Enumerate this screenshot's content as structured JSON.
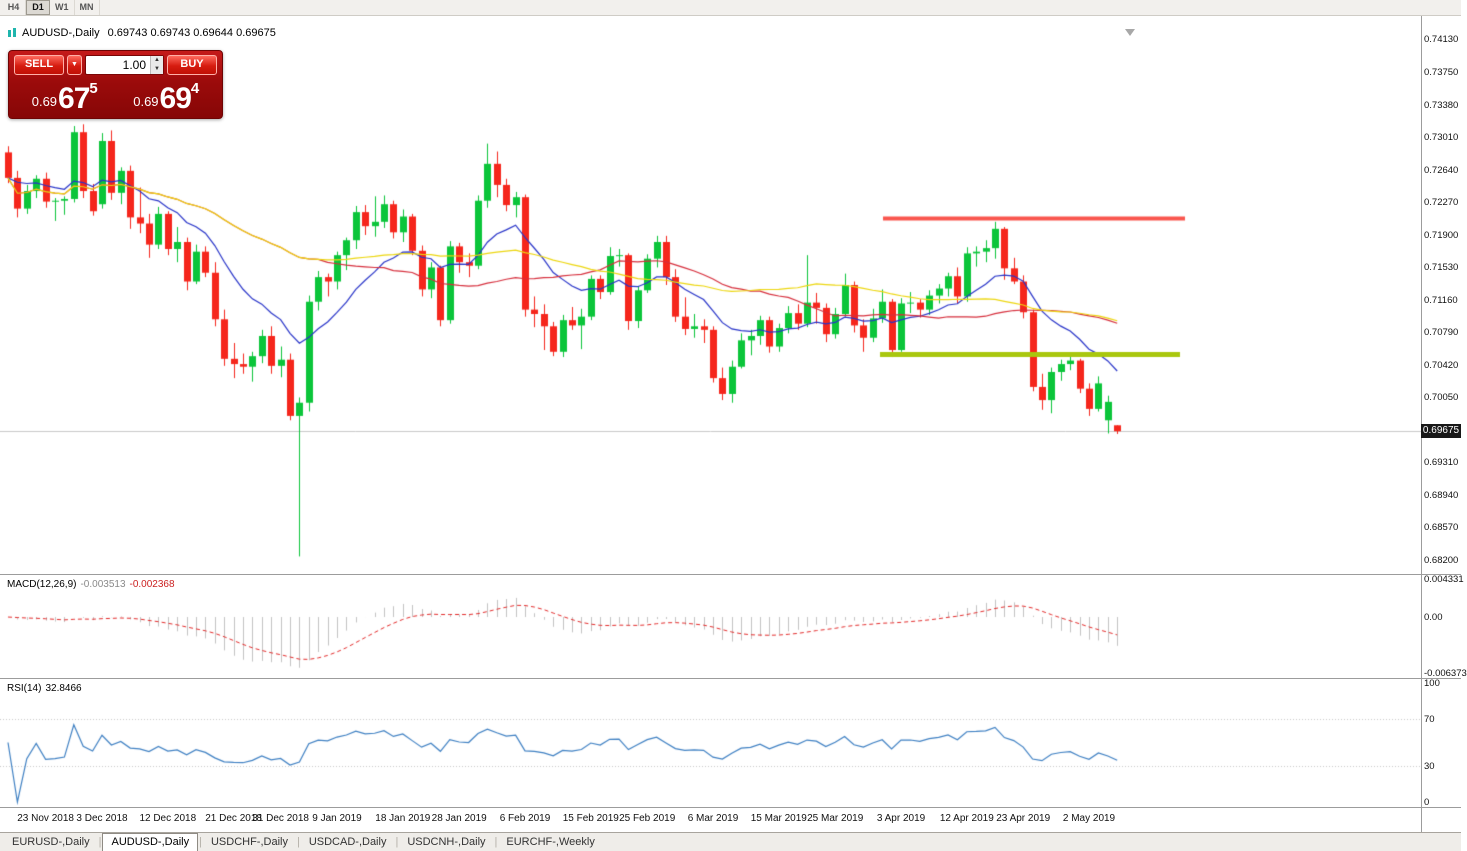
{
  "toolbar": {
    "timeframes": [
      "H4",
      "D1",
      "W1",
      "MN"
    ],
    "active_timeframe": "D1"
  },
  "chart_header": {
    "symbol": "AUDUSD-,Daily",
    "ohlc": "0.69743 0.69743 0.69644 0.69675",
    "current_price_badge": "0.69675"
  },
  "trade_panel": {
    "sell_label": "SELL",
    "buy_label": "BUY",
    "volume": "1.00",
    "icons": {
      "dropdown": "▼",
      "spin_up": "▲",
      "spin_down": "▼"
    },
    "sell_price": {
      "base": "0.69",
      "pips": "67",
      "point": "5"
    },
    "buy_price": {
      "base": "0.69",
      "pips": "69",
      "point": "4"
    }
  },
  "macd_panel": {
    "name": "MACD(12,26,9)",
    "value_main": "-0.003513",
    "value_signal": "-0.002368",
    "axis_labels": [
      "0.004331",
      "0.00",
      "-0.006373"
    ]
  },
  "rsi_panel": {
    "name": "RSI(14)",
    "value": "32.8466",
    "axis_labels": [
      "100",
      "70",
      "30",
      "0"
    ]
  },
  "tab_bar": {
    "separator": "|",
    "tabs": [
      {
        "label": "EURUSD-,Daily",
        "active": false
      },
      {
        "label": "AUDUSD-,Daily",
        "active": true
      },
      {
        "label": "USDCHF-,Daily",
        "active": false
      },
      {
        "label": "USDCAD-,Daily",
        "active": false
      },
      {
        "label": "USDCNH-,Daily",
        "active": false
      },
      {
        "label": "EURCHF-,Weekly",
        "active": false
      }
    ]
  },
  "colors": {
    "bull": "#0bc53a",
    "bear": "#f5261c",
    "price_line": "#c9c9c9",
    "badge_bg": "#181818",
    "macd_hist": "#c2c2c2",
    "macd_signal": "#e22929",
    "rsi_line": "#3d7fc2",
    "rsi_levels": "#c6c6c6"
  },
  "chart_data": {
    "type": "candlestick",
    "symbol": "AUDUSD",
    "timeframe": "Daily",
    "ylim": [
      0.6805,
      0.74403
    ],
    "current_price": 0.69675,
    "price_axis_labels": [
      "0.74130",
      "0.73750",
      "0.73380",
      "0.73010",
      "0.72640",
      "0.72270",
      "0.71900",
      "0.71530",
      "0.71160",
      "0.70790",
      "0.70420",
      "0.70050",
      "0.69310",
      "0.68940",
      "0.68570",
      "0.68200"
    ],
    "date_labels": [
      {
        "label": "23 Nov 2018",
        "index": 4
      },
      {
        "label": "3 Dec 2018",
        "index": 10
      },
      {
        "label": "12 Dec 2018",
        "index": 17
      },
      {
        "label": "21 Dec 2018",
        "index": 24
      },
      {
        "label": "31 Dec 2018",
        "index": 29
      },
      {
        "label": "9 Jan 2019",
        "index": 35
      },
      {
        "label": "18 Jan 2019",
        "index": 42
      },
      {
        "label": "28 Jan 2019",
        "index": 48
      },
      {
        "label": "6 Feb 2019",
        "index": 55
      },
      {
        "label": "15 Feb 2019",
        "index": 62
      },
      {
        "label": "25 Feb 2019",
        "index": 68
      },
      {
        "label": "6 Mar 2019",
        "index": 75
      },
      {
        "label": "15 Mar 2019",
        "index": 82
      },
      {
        "label": "25 Mar 2019",
        "index": 88
      },
      {
        "label": "3 Apr 2019",
        "index": 95
      },
      {
        "label": "12 Apr 2019",
        "index": 102
      },
      {
        "label": "23 Apr 2019",
        "index": 108
      },
      {
        "label": "2 May 2019",
        "index": 115
      }
    ],
    "overlays": {
      "moving_averages": [
        {
          "name": "fast",
          "type": "ema",
          "period": 13,
          "color": "#2733c8"
        },
        {
          "name": "mid",
          "type": "sma",
          "period": 34,
          "color": "#d62e3c"
        },
        {
          "name": "slow",
          "type": "sma",
          "period": 55,
          "color": "#ecd60e"
        }
      ],
      "resistance_line": {
        "price": 0.721,
        "x1": 883,
        "x2": 1185,
        "color": "#f9564e",
        "width": 4
      },
      "support_line": {
        "price": 0.70555,
        "x1": 880,
        "x2": 1180,
        "color": "#a9c70e",
        "width": 5
      }
    },
    "macd": {
      "fast": 12,
      "slow": 26,
      "signal_period": 9,
      "ylim": [
        -0.006373,
        0.004331
      ]
    },
    "rsi": {
      "period": 14,
      "levels": [
        70,
        30
      ]
    },
    "candles": [
      [
        0.7285,
        0.7292,
        0.725,
        0.7256
      ],
      [
        0.7256,
        0.7264,
        0.7211,
        0.7221
      ],
      [
        0.7221,
        0.7248,
        0.7215,
        0.7241
      ],
      [
        0.7241,
        0.7259,
        0.7233,
        0.7255
      ],
      [
        0.7255,
        0.7262,
        0.7222,
        0.7229
      ],
      [
        0.7229,
        0.7233,
        0.7207,
        0.723
      ],
      [
        0.723,
        0.7235,
        0.7214,
        0.7232
      ],
      [
        0.7232,
        0.7315,
        0.7228,
        0.7308
      ],
      [
        0.7308,
        0.7317,
        0.7233,
        0.7241
      ],
      [
        0.7241,
        0.7249,
        0.7213,
        0.7218
      ],
      [
        0.7226,
        0.7307,
        0.7221,
        0.7298
      ],
      [
        0.7298,
        0.731,
        0.7231,
        0.7239
      ],
      [
        0.7239,
        0.7268,
        0.7226,
        0.7264
      ],
      [
        0.7264,
        0.727,
        0.7198,
        0.7211
      ],
      [
        0.7211,
        0.7245,
        0.7193,
        0.7204
      ],
      [
        0.7204,
        0.7215,
        0.7165,
        0.718
      ],
      [
        0.718,
        0.7223,
        0.7175,
        0.7215
      ],
      [
        0.7215,
        0.7218,
        0.7168,
        0.7175
      ],
      [
        0.7175,
        0.72,
        0.716,
        0.7183
      ],
      [
        0.7183,
        0.7188,
        0.7128,
        0.7138
      ],
      [
        0.7138,
        0.718,
        0.7135,
        0.7172
      ],
      [
        0.7172,
        0.7178,
        0.7143,
        0.7148
      ],
      [
        0.7148,
        0.716,
        0.7087,
        0.7095
      ],
      [
        0.7095,
        0.7106,
        0.7042,
        0.705
      ],
      [
        0.705,
        0.7068,
        0.7028,
        0.7044
      ],
      [
        0.7044,
        0.7056,
        0.7033,
        0.7041
      ],
      [
        0.7041,
        0.7058,
        0.7024,
        0.7053
      ],
      [
        0.7053,
        0.7083,
        0.7045,
        0.7076
      ],
      [
        0.7076,
        0.7087,
        0.7033,
        0.7042
      ],
      [
        0.7042,
        0.7064,
        0.7029,
        0.7049
      ],
      [
        0.7049,
        0.7056,
        0.698,
        0.6985
      ],
      [
        0.6985,
        0.7006,
        0.6825,
        0.7
      ],
      [
        0.7,
        0.7122,
        0.699,
        0.7115
      ],
      [
        0.7115,
        0.715,
        0.7105,
        0.7143
      ],
      [
        0.7143,
        0.7147,
        0.7121,
        0.7138
      ],
      [
        0.7138,
        0.7172,
        0.7129,
        0.7168
      ],
      [
        0.7168,
        0.7188,
        0.7151,
        0.7185
      ],
      [
        0.7185,
        0.7224,
        0.7175,
        0.7217
      ],
      [
        0.7217,
        0.7225,
        0.7191,
        0.7201
      ],
      [
        0.7201,
        0.7235,
        0.7189,
        0.7206
      ],
      [
        0.7206,
        0.7236,
        0.7199,
        0.7226
      ],
      [
        0.7226,
        0.723,
        0.7187,
        0.7194
      ],
      [
        0.7194,
        0.722,
        0.7183,
        0.7212
      ],
      [
        0.7212,
        0.7215,
        0.7168,
        0.7173
      ],
      [
        0.7173,
        0.7179,
        0.7121,
        0.7129
      ],
      [
        0.7129,
        0.716,
        0.7119,
        0.7154
      ],
      [
        0.7154,
        0.7156,
        0.7087,
        0.7094
      ],
      [
        0.7094,
        0.7184,
        0.709,
        0.7178
      ],
      [
        0.7178,
        0.7182,
        0.7148,
        0.716
      ],
      [
        0.716,
        0.717,
        0.7143,
        0.7156
      ],
      [
        0.7156,
        0.7236,
        0.7152,
        0.723
      ],
      [
        0.723,
        0.7295,
        0.7222,
        0.7272
      ],
      [
        0.7272,
        0.7286,
        0.7234,
        0.7248
      ],
      [
        0.7248,
        0.7255,
        0.7218,
        0.7225
      ],
      [
        0.7225,
        0.724,
        0.7211,
        0.7234
      ],
      [
        0.7234,
        0.7237,
        0.7098,
        0.7106
      ],
      [
        0.7106,
        0.7121,
        0.7086,
        0.7101
      ],
      [
        0.7101,
        0.7112,
        0.706,
        0.7087
      ],
      [
        0.7087,
        0.7092,
        0.7053,
        0.7058
      ],
      [
        0.7058,
        0.71,
        0.7052,
        0.7094
      ],
      [
        0.7094,
        0.7109,
        0.7083,
        0.7088
      ],
      [
        0.7088,
        0.7107,
        0.7061,
        0.7098
      ],
      [
        0.7098,
        0.7145,
        0.7094,
        0.7141
      ],
      [
        0.7141,
        0.7145,
        0.7118,
        0.7126
      ],
      [
        0.7126,
        0.7177,
        0.7123,
        0.7167
      ],
      [
        0.7167,
        0.7175,
        0.7155,
        0.7168
      ],
      [
        0.7168,
        0.717,
        0.7083,
        0.7093
      ],
      [
        0.7093,
        0.7133,
        0.7085,
        0.7128
      ],
      [
        0.7128,
        0.7169,
        0.7125,
        0.7164
      ],
      [
        0.7164,
        0.719,
        0.7154,
        0.7183
      ],
      [
        0.7183,
        0.719,
        0.7134,
        0.7143
      ],
      [
        0.7143,
        0.7152,
        0.7092,
        0.7098
      ],
      [
        0.7098,
        0.712,
        0.7077,
        0.7084
      ],
      [
        0.7084,
        0.7101,
        0.7074,
        0.7087
      ],
      [
        0.7087,
        0.7095,
        0.7068,
        0.7083
      ],
      [
        0.7083,
        0.7087,
        0.7023,
        0.7028
      ],
      [
        0.7028,
        0.704,
        0.7003,
        0.701
      ],
      [
        0.701,
        0.7048,
        0.7,
        0.7041
      ],
      [
        0.7041,
        0.7079,
        0.7039,
        0.7071
      ],
      [
        0.7071,
        0.7083,
        0.7054,
        0.7076
      ],
      [
        0.7076,
        0.7099,
        0.7066,
        0.7094
      ],
      [
        0.7094,
        0.7098,
        0.7057,
        0.7064
      ],
      [
        0.7064,
        0.709,
        0.7058,
        0.7085
      ],
      [
        0.7085,
        0.711,
        0.7079,
        0.7102
      ],
      [
        0.7102,
        0.7112,
        0.7083,
        0.709
      ],
      [
        0.709,
        0.7168,
        0.7086,
        0.7114
      ],
      [
        0.7114,
        0.7125,
        0.709,
        0.7108
      ],
      [
        0.7108,
        0.7113,
        0.7069,
        0.7078
      ],
      [
        0.7078,
        0.7108,
        0.7073,
        0.7101
      ],
      [
        0.7101,
        0.7147,
        0.7098,
        0.7134
      ],
      [
        0.7134,
        0.7138,
        0.708,
        0.7088
      ],
      [
        0.7088,
        0.7095,
        0.7058,
        0.7074
      ],
      [
        0.7074,
        0.7107,
        0.7069,
        0.7096
      ],
      [
        0.7096,
        0.7129,
        0.7091,
        0.7115
      ],
      [
        0.7115,
        0.7118,
        0.7052,
        0.706
      ],
      [
        0.706,
        0.7119,
        0.7058,
        0.7113
      ],
      [
        0.7113,
        0.7126,
        0.7102,
        0.7114
      ],
      [
        0.7114,
        0.7118,
        0.7097,
        0.7106
      ],
      [
        0.7106,
        0.7128,
        0.71,
        0.7122
      ],
      [
        0.7122,
        0.7135,
        0.7113,
        0.713
      ],
      [
        0.713,
        0.7148,
        0.7121,
        0.7144
      ],
      [
        0.7144,
        0.7154,
        0.7113,
        0.7121
      ],
      [
        0.7121,
        0.7177,
        0.7115,
        0.717
      ],
      [
        0.717,
        0.7178,
        0.7155,
        0.7172
      ],
      [
        0.7172,
        0.7185,
        0.716,
        0.7176
      ],
      [
        0.7176,
        0.7206,
        0.7164,
        0.7198
      ],
      [
        0.7198,
        0.72,
        0.714,
        0.7153
      ],
      [
        0.7153,
        0.7165,
        0.7135,
        0.7138
      ],
      [
        0.7138,
        0.7145,
        0.7096,
        0.7103
      ],
      [
        0.7103,
        0.7106,
        0.7013,
        0.7018
      ],
      [
        0.7018,
        0.7033,
        0.6992,
        0.7003
      ],
      [
        0.7003,
        0.704,
        0.6988,
        0.7035
      ],
      [
        0.7035,
        0.7049,
        0.7025,
        0.7044
      ],
      [
        0.7044,
        0.7056,
        0.7037,
        0.7048
      ],
      [
        0.7048,
        0.705,
        0.7011,
        0.7016
      ],
      [
        0.7016,
        0.7022,
        0.6985,
        0.6993
      ],
      [
        0.6993,
        0.703,
        0.699,
        0.7022
      ],
      [
        0.698,
        0.7008,
        0.6965,
        0.7001
      ],
      [
        0.69743,
        0.69743,
        0.69644,
        0.69675
      ]
    ]
  }
}
